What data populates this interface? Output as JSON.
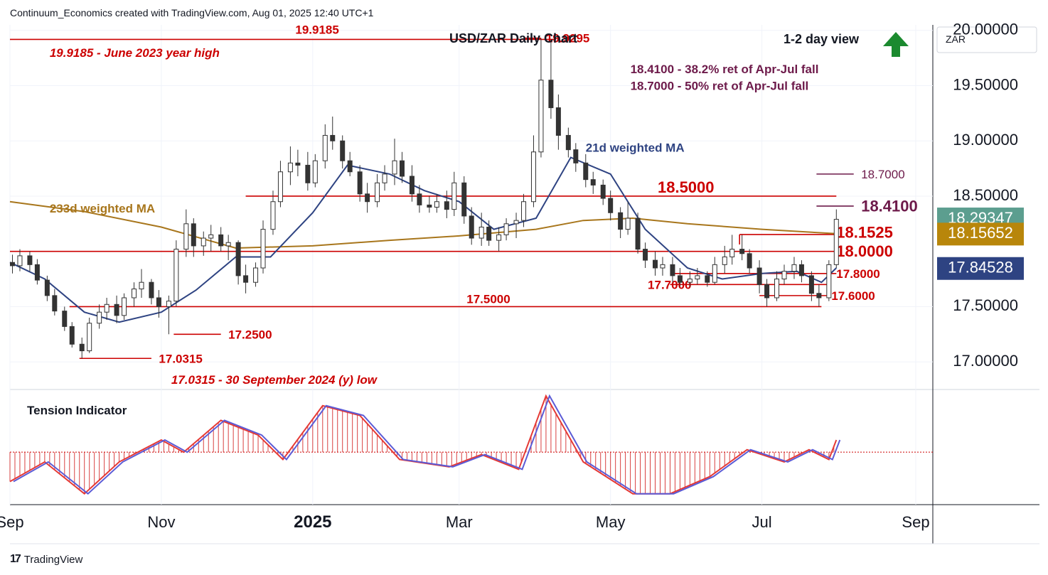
{
  "header": {
    "attribution": "Continuum_Economics created with TradingView.com, Aug 01, 2025 12:40 UTC+1"
  },
  "footer": {
    "brand": "TradingView"
  },
  "chart_data": {
    "type": "candlestick",
    "title": "USD/ZAR Daily Chart",
    "view_label": "1-2 day view",
    "view_direction": "up",
    "currency": "ZAR",
    "y_ticks": [
      "20.00000",
      "19.50000",
      "19.00000",
      "18.50000",
      "17.50000",
      "17.00000"
    ],
    "ylim": [
      16.75,
      20.05
    ],
    "x_ticks": [
      {
        "label": "Sep",
        "date": "2024-09-01",
        "bold": false
      },
      {
        "label": "Nov",
        "date": "2024-11-01",
        "bold": false
      },
      {
        "label": "2025",
        "date": "2025-01-01",
        "bold": true
      },
      {
        "label": "Mar",
        "date": "2025-03-01",
        "bold": false
      },
      {
        "label": "May",
        "date": "2025-05-01",
        "bold": false
      },
      {
        "label": "Jul",
        "date": "2025-07-01",
        "bold": false
      },
      {
        "label": "Sep",
        "date": "2025-09-01",
        "bold": false
      }
    ],
    "price_badges": [
      {
        "value": "18.29347",
        "price": 18.2935,
        "color": "#5c9e8f"
      },
      {
        "value": "18.15652",
        "price": 18.1565,
        "color": "#b8860b"
      },
      {
        "value": "17.84528",
        "price": 17.8453,
        "color": "#2e4382"
      }
    ],
    "levels": [
      {
        "price": 19.9185,
        "start": "2024-09-01",
        "end": "2025-04-09",
        "label": "19.9185",
        "label_date": "2024-12-25",
        "label_price": 20.0,
        "label_color": "#cc0000"
      },
      {
        "price": 18.5,
        "start": "2024-12-05",
        "end": "2025-07-31",
        "label": "18.5000",
        "label_date": "2025-05-20",
        "label_price": 18.57,
        "label_size": 22
      },
      {
        "price": 18.0,
        "start": "2024-09-01",
        "end": "2025-07-31",
        "label": "18.0000",
        "label_date": "2025-07-31",
        "label_price": 17.99,
        "label_size": 22
      },
      {
        "price": 17.5,
        "start": "2024-09-25",
        "end": "2025-07-25",
        "label": "17.5000",
        "label_date": "2025-03-04",
        "label_price": 17.56
      },
      {
        "price": 18.1525,
        "start": "2025-06-22",
        "end": "2025-07-31",
        "label": "18.1525",
        "label_date": "2025-07-31",
        "label_price": 18.16,
        "label_size": 22,
        "bracket": true
      },
      {
        "price": 17.8,
        "start": "2025-05-25",
        "end": "2025-07-31",
        "label": "17.8000",
        "label_date": "2025-07-31",
        "label_price": 17.79
      },
      {
        "price": 17.7,
        "start": "2025-05-25",
        "end": "2025-07-28",
        "label": "17.7000",
        "label_date": "2025-05-16",
        "label_price": 17.69
      },
      {
        "price": 17.6,
        "start": "2025-06-30",
        "end": "2025-07-28",
        "label": "17.6000",
        "label_date": "2025-07-29",
        "label_price": 17.59
      },
      {
        "price": 17.25,
        "start": "2024-11-06",
        "end": "2024-11-25",
        "label": "17.2500",
        "label_date": "2024-11-28",
        "label_price": 17.24
      },
      {
        "price": 17.0315,
        "start": "2024-09-29",
        "end": "2024-10-28",
        "label": "17.0315",
        "label_date": "2024-10-31",
        "label_price": 17.02
      },
      {
        "price": 19.9295,
        "start": "2025-03-27",
        "end": "2025-04-03",
        "label": "19.9295",
        "label_date": "2025-04-05",
        "label_price": 19.92
      },
      {
        "price": 18.7,
        "start": "2025-07-23",
        "end": "2025-08-07",
        "label": "18.7000",
        "label_date": "2025-08-10",
        "label_price": 18.69,
        "label_color": "#6d1a4a",
        "line_color": "#6d1a4a",
        "label_weight": "normal"
      },
      {
        "price": 18.41,
        "start": "2025-07-23",
        "end": "2025-08-07",
        "label": "18.4100",
        "label_date": "2025-08-10",
        "label_price": 18.4,
        "label_color": "#6d1a4a",
        "line_color": "#6d1a4a",
        "label_size": 22
      }
    ],
    "annotations": [
      {
        "text": "19.9185 - June 2023 year high",
        "date": "2024-09-17",
        "price": 19.79,
        "color": "#cc0000",
        "italic": true
      },
      {
        "text": "18.4100 - 38.2% ret of Apr-Jul fall",
        "date": "2025-05-09",
        "price": 19.64,
        "color": "#6d1a4a",
        "italic": false
      },
      {
        "text": "18.7000 - 50% ret of Apr-Jul fall",
        "date": "2025-05-09",
        "price": 19.49,
        "color": "#6d1a4a",
        "italic": false
      },
      {
        "text": "17.0315 - 30 September 2024 (y) low",
        "date": "2024-11-05",
        "price": 16.83,
        "color": "#cc0000",
        "italic": true
      },
      {
        "text": "21d weighted MA",
        "date": "2025-04-21",
        "price": 18.93,
        "color": "#2e4382",
        "italic": false
      },
      {
        "text": "233d weighted MA",
        "date": "2024-09-17",
        "price": 18.38,
        "color": "#a8761c",
        "italic": false
      }
    ],
    "ohlc": [
      [
        "2024-09-02",
        17.9,
        17.97,
        17.8,
        17.87
      ],
      [
        "2024-09-05",
        17.87,
        18.02,
        17.82,
        17.96
      ],
      [
        "2024-09-09",
        17.96,
        18.0,
        17.82,
        17.88
      ],
      [
        "2024-09-12",
        17.88,
        17.93,
        17.7,
        17.74
      ],
      [
        "2024-09-16",
        17.74,
        17.78,
        17.55,
        17.6
      ],
      [
        "2024-09-19",
        17.6,
        17.66,
        17.42,
        17.46
      ],
      [
        "2024-09-23",
        17.46,
        17.5,
        17.28,
        17.32
      ],
      [
        "2024-09-26",
        17.32,
        17.36,
        17.13,
        17.16
      ],
      [
        "2024-09-30",
        17.16,
        17.22,
        17.03,
        17.1
      ],
      [
        "2024-10-03",
        17.1,
        17.4,
        17.08,
        17.35
      ],
      [
        "2024-10-07",
        17.35,
        17.52,
        17.3,
        17.45
      ],
      [
        "2024-10-10",
        17.45,
        17.58,
        17.38,
        17.52
      ],
      [
        "2024-10-14",
        17.52,
        17.6,
        17.35,
        17.42
      ],
      [
        "2024-10-17",
        17.42,
        17.62,
        17.38,
        17.58
      ],
      [
        "2024-10-21",
        17.58,
        17.72,
        17.5,
        17.66
      ],
      [
        "2024-10-24",
        17.66,
        17.84,
        17.58,
        17.72
      ],
      [
        "2024-10-28",
        17.72,
        17.75,
        17.52,
        17.58
      ],
      [
        "2024-10-31",
        17.58,
        17.65,
        17.4,
        17.5
      ],
      [
        "2024-11-04",
        17.5,
        17.6,
        17.25,
        17.55
      ],
      [
        "2024-11-07",
        17.55,
        18.1,
        17.5,
        18.02
      ],
      [
        "2024-11-11",
        18.02,
        18.38,
        17.95,
        18.25
      ],
      [
        "2024-11-14",
        18.25,
        18.3,
        17.95,
        18.05
      ],
      [
        "2024-11-18",
        18.05,
        18.18,
        17.96,
        18.12
      ],
      [
        "2024-11-21",
        18.12,
        18.24,
        18.0,
        18.15
      ],
      [
        "2024-11-25",
        18.15,
        18.22,
        18.0,
        18.05
      ],
      [
        "2024-11-28",
        18.05,
        18.15,
        17.92,
        18.08
      ],
      [
        "2024-12-02",
        18.08,
        18.1,
        17.7,
        17.78
      ],
      [
        "2024-12-05",
        17.78,
        17.88,
        17.62,
        17.72
      ],
      [
        "2024-12-09",
        17.72,
        17.9,
        17.68,
        17.85
      ],
      [
        "2024-12-12",
        17.85,
        18.28,
        17.8,
        18.2
      ],
      [
        "2024-12-16",
        18.2,
        18.55,
        18.15,
        18.45
      ],
      [
        "2024-12-19",
        18.45,
        18.82,
        18.4,
        18.72
      ],
      [
        "2024-12-23",
        18.72,
        18.95,
        18.6,
        18.8
      ],
      [
        "2024-12-26",
        18.8,
        18.92,
        18.68,
        18.78
      ],
      [
        "2024-12-30",
        18.78,
        18.9,
        18.55,
        18.62
      ],
      [
        "2025-01-02",
        18.62,
        18.88,
        18.58,
        18.82
      ],
      [
        "2025-01-06",
        18.82,
        19.15,
        18.75,
        19.05
      ],
      [
        "2025-01-09",
        19.05,
        19.22,
        18.92,
        19.0
      ],
      [
        "2025-01-13",
        19.0,
        19.05,
        18.75,
        18.82
      ],
      [
        "2025-01-16",
        18.82,
        18.9,
        18.68,
        18.72
      ],
      [
        "2025-01-20",
        18.72,
        18.78,
        18.45,
        18.52
      ],
      [
        "2025-01-23",
        18.52,
        18.62,
        18.35,
        18.45
      ],
      [
        "2025-01-27",
        18.45,
        18.7,
        18.4,
        18.62
      ],
      [
        "2025-01-30",
        18.62,
        18.78,
        18.55,
        18.7
      ],
      [
        "2025-02-03",
        18.7,
        19.02,
        18.6,
        18.82
      ],
      [
        "2025-02-06",
        18.82,
        18.9,
        18.62,
        18.68
      ],
      [
        "2025-02-10",
        18.68,
        18.78,
        18.45,
        18.52
      ],
      [
        "2025-02-13",
        18.52,
        18.6,
        18.35,
        18.42
      ],
      [
        "2025-02-17",
        18.42,
        18.5,
        18.35,
        18.4
      ],
      [
        "2025-02-20",
        18.4,
        18.52,
        18.35,
        18.45
      ],
      [
        "2025-02-24",
        18.45,
        18.55,
        18.3,
        18.38
      ],
      [
        "2025-02-27",
        18.38,
        18.72,
        18.32,
        18.62
      ],
      [
        "2025-03-03",
        18.62,
        18.68,
        18.25,
        18.32
      ],
      [
        "2025-03-06",
        18.32,
        18.4,
        18.06,
        18.12
      ],
      [
        "2025-03-10",
        18.12,
        18.35,
        18.05,
        18.22
      ],
      [
        "2025-03-13",
        18.22,
        18.28,
        18.05,
        18.1
      ],
      [
        "2025-03-17",
        18.1,
        18.22,
        18.0,
        18.15
      ],
      [
        "2025-03-20",
        18.15,
        18.3,
        18.1,
        18.25
      ],
      [
        "2025-03-24",
        18.25,
        18.35,
        18.12,
        18.28
      ],
      [
        "2025-03-27",
        18.28,
        18.52,
        18.22,
        18.45
      ],
      [
        "2025-03-31",
        18.45,
        19.05,
        18.4,
        18.9
      ],
      [
        "2025-04-03",
        18.9,
        19.93,
        18.85,
        19.55
      ],
      [
        "2025-04-07",
        19.55,
        19.9,
        19.2,
        19.3
      ],
      [
        "2025-04-10",
        19.3,
        19.42,
        18.92,
        19.05
      ],
      [
        "2025-04-14",
        19.05,
        19.12,
        18.85,
        18.92
      ],
      [
        "2025-04-17",
        18.92,
        18.98,
        18.72,
        18.8
      ],
      [
        "2025-04-21",
        18.8,
        18.88,
        18.58,
        18.65
      ],
      [
        "2025-04-24",
        18.65,
        18.72,
        18.52,
        18.6
      ],
      [
        "2025-04-28",
        18.6,
        18.65,
        18.42,
        18.48
      ],
      [
        "2025-05-01",
        18.48,
        18.55,
        18.28,
        18.35
      ],
      [
        "2025-05-05",
        18.35,
        18.4,
        18.12,
        18.2
      ],
      [
        "2025-05-08",
        18.2,
        18.45,
        18.15,
        18.3
      ],
      [
        "2025-05-12",
        18.3,
        18.35,
        17.98,
        18.02
      ],
      [
        "2025-05-15",
        18.02,
        18.08,
        17.85,
        17.92
      ],
      [
        "2025-05-19",
        17.92,
        18.0,
        17.78,
        17.85
      ],
      [
        "2025-05-22",
        17.85,
        17.95,
        17.78,
        17.88
      ],
      [
        "2025-05-26",
        17.88,
        17.95,
        17.72,
        17.78
      ],
      [
        "2025-05-29",
        17.78,
        17.85,
        17.68,
        17.72
      ],
      [
        "2025-06-02",
        17.72,
        17.82,
        17.68,
        17.75
      ],
      [
        "2025-06-05",
        17.75,
        17.85,
        17.7,
        17.78
      ],
      [
        "2025-06-09",
        17.78,
        17.82,
        17.68,
        17.72
      ],
      [
        "2025-06-12",
        17.72,
        17.95,
        17.7,
        17.88
      ],
      [
        "2025-06-16",
        17.88,
        18.05,
        17.8,
        17.95
      ],
      [
        "2025-06-19",
        17.95,
        18.15,
        17.88,
        18.02
      ],
      [
        "2025-06-23",
        18.02,
        18.15,
        17.92,
        17.98
      ],
      [
        "2025-06-26",
        17.98,
        18.02,
        17.8,
        17.85
      ],
      [
        "2025-06-30",
        17.85,
        17.92,
        17.62,
        17.7
      ],
      [
        "2025-07-03",
        17.7,
        17.75,
        17.5,
        17.58
      ],
      [
        "2025-07-07",
        17.58,
        17.82,
        17.55,
        17.75
      ],
      [
        "2025-07-10",
        17.75,
        17.88,
        17.7,
        17.82
      ],
      [
        "2025-07-14",
        17.82,
        17.95,
        17.75,
        17.88
      ],
      [
        "2025-07-17",
        17.88,
        17.92,
        17.72,
        17.78
      ],
      [
        "2025-07-21",
        17.78,
        17.82,
        17.55,
        17.62
      ],
      [
        "2025-07-24",
        17.62,
        17.7,
        17.5,
        17.58
      ],
      [
        "2025-07-28",
        17.58,
        17.92,
        17.55,
        17.88
      ],
      [
        "2025-07-31",
        17.88,
        18.38,
        17.85,
        18.29
      ]
    ],
    "ma233_label": "233d weighted MA",
    "ma233": [
      [
        "2024-09-01",
        18.45
      ],
      [
        "2024-10-01",
        18.36
      ],
      [
        "2024-11-01",
        18.22
      ],
      [
        "2024-12-01",
        18.03
      ],
      [
        "2025-01-01",
        18.05
      ],
      [
        "2025-02-01",
        18.1
      ],
      [
        "2025-03-01",
        18.14
      ],
      [
        "2025-04-01",
        18.2
      ],
      [
        "2025-04-20",
        18.28
      ],
      [
        "2025-05-10",
        18.3
      ],
      [
        "2025-06-01",
        18.25
      ],
      [
        "2025-07-01",
        18.2
      ],
      [
        "2025-07-31",
        18.16
      ]
    ],
    "ma21_label": "21d weighted MA",
    "ma21": [
      [
        "2024-09-01",
        17.9
      ],
      [
        "2024-09-15",
        17.75
      ],
      [
        "2024-10-01",
        17.45
      ],
      [
        "2024-10-15",
        17.36
      ],
      [
        "2024-11-01",
        17.45
      ],
      [
        "2024-11-15",
        17.65
      ],
      [
        "2024-12-01",
        17.95
      ],
      [
        "2024-12-15",
        17.95
      ],
      [
        "2025-01-01",
        18.35
      ],
      [
        "2025-01-15",
        18.78
      ],
      [
        "2025-02-01",
        18.7
      ],
      [
        "2025-02-15",
        18.55
      ],
      [
        "2025-03-01",
        18.45
      ],
      [
        "2025-03-15",
        18.2
      ],
      [
        "2025-04-01",
        18.3
      ],
      [
        "2025-04-15",
        18.85
      ],
      [
        "2025-05-01",
        18.7
      ],
      [
        "2025-05-15",
        18.2
      ],
      [
        "2025-06-01",
        17.85
      ],
      [
        "2025-06-15",
        17.75
      ],
      [
        "2025-07-01",
        17.8
      ],
      [
        "2025-07-15",
        17.82
      ],
      [
        "2025-07-25",
        17.72
      ],
      [
        "2025-07-31",
        17.85
      ]
    ],
    "tension_indicator": {
      "label": "Tension Indicator",
      "ylim": [
        -1.0,
        1.15
      ],
      "values": [
        [
          "2024-09-01",
          -0.6
        ],
        [
          "2024-09-15",
          -0.2
        ],
        [
          "2024-10-01",
          -0.85
        ],
        [
          "2024-10-15",
          -0.2
        ],
        [
          "2024-11-01",
          0.25
        ],
        [
          "2024-11-10",
          0.0
        ],
        [
          "2024-11-25",
          0.65
        ],
        [
          "2024-12-10",
          0.35
        ],
        [
          "2024-12-20",
          -0.15
        ],
        [
          "2025-01-05",
          0.95
        ],
        [
          "2025-01-20",
          0.75
        ],
        [
          "2025-02-05",
          -0.15
        ],
        [
          "2025-02-25",
          -0.3
        ],
        [
          "2025-03-10",
          -0.05
        ],
        [
          "2025-03-25",
          -0.35
        ],
        [
          "2025-04-05",
          1.15
        ],
        [
          "2025-04-20",
          -0.2
        ],
        [
          "2025-05-10",
          -0.85
        ],
        [
          "2025-05-25",
          -0.85
        ],
        [
          "2025-06-10",
          -0.5
        ],
        [
          "2025-06-25",
          0.05
        ],
        [
          "2025-07-10",
          -0.2
        ],
        [
          "2025-07-20",
          0.05
        ],
        [
          "2025-07-28",
          -0.15
        ],
        [
          "2025-07-31",
          0.25
        ]
      ]
    }
  }
}
